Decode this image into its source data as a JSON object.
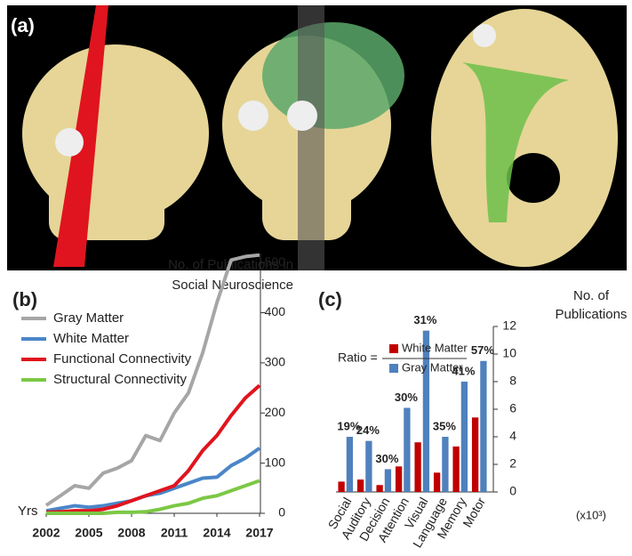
{
  "panels": [
    "(a)",
    "(b)",
    "(c)"
  ],
  "chart_data": [
    {
      "type": "line",
      "title": [
        "No. of Publications in",
        "Social Neuroscience"
      ],
      "x_label": "Yrs",
      "x": [
        2002,
        2003,
        2004,
        2005,
        2006,
        2007,
        2008,
        2009,
        2010,
        2011,
        2012,
        2013,
        2014,
        2015,
        2016,
        2017
      ],
      "xlim": [
        2002,
        2017
      ],
      "xticks": [
        2002,
        2005,
        2008,
        2011,
        2014,
        2017
      ],
      "ylim": [
        0,
        518
      ],
      "yticks": [
        0,
        100,
        200,
        300,
        400,
        500
      ],
      "legend": "upper left",
      "series": [
        {
          "name": "Gray Matter",
          "color": "#a6a6a6",
          "values": [
            16,
            35,
            55,
            50,
            80,
            90,
            105,
            155,
            145,
            200,
            240,
            320,
            420,
            505,
            512,
            515
          ]
        },
        {
          "name": "White Matter",
          "color": "#4a86c8",
          "values": [
            5,
            10,
            15,
            12,
            15,
            20,
            25,
            35,
            40,
            50,
            60,
            70,
            72,
            95,
            110,
            130
          ]
        },
        {
          "name": "Functional Connectivity",
          "color": "#e0141e",
          "values": [
            2,
            3,
            5,
            5,
            8,
            15,
            25,
            35,
            45,
            55,
            85,
            125,
            155,
            195,
            230,
            255
          ]
        },
        {
          "name": "Structural Connectivity",
          "color": "#7cc846",
          "values": [
            0,
            0,
            0,
            0,
            0,
            2,
            2,
            3,
            8,
            15,
            20,
            30,
            35,
            45,
            55,
            65
          ]
        }
      ]
    },
    {
      "type": "bar",
      "title": [
        "No. of",
        "Publications"
      ],
      "y_unit_label": "(x10³)",
      "ratio_label": "Ratio =",
      "categories": [
        "Social",
        "Auditory",
        "Decision",
        "Attention",
        "Visual",
        "Language",
        "Memory",
        "Motor"
      ],
      "ylim": [
        0,
        12
      ],
      "yticks": [
        0,
        2,
        4,
        6,
        8,
        10,
        12
      ],
      "series": [
        {
          "name": "White Matter",
          "color": "#c00000",
          "values": [
            0.75,
            0.9,
            0.5,
            1.85,
            3.6,
            1.4,
            3.3,
            5.4
          ]
        },
        {
          "name": "Gray Matter",
          "color": "#4f81bd",
          "values": [
            4.0,
            3.7,
            1.65,
            6.1,
            11.7,
            4.0,
            8.0,
            9.5
          ]
        }
      ],
      "ratio_labels": [
        "19%",
        "24%",
        "30%",
        "30%",
        "31%",
        "35%",
        "41%",
        "57%"
      ]
    }
  ]
}
